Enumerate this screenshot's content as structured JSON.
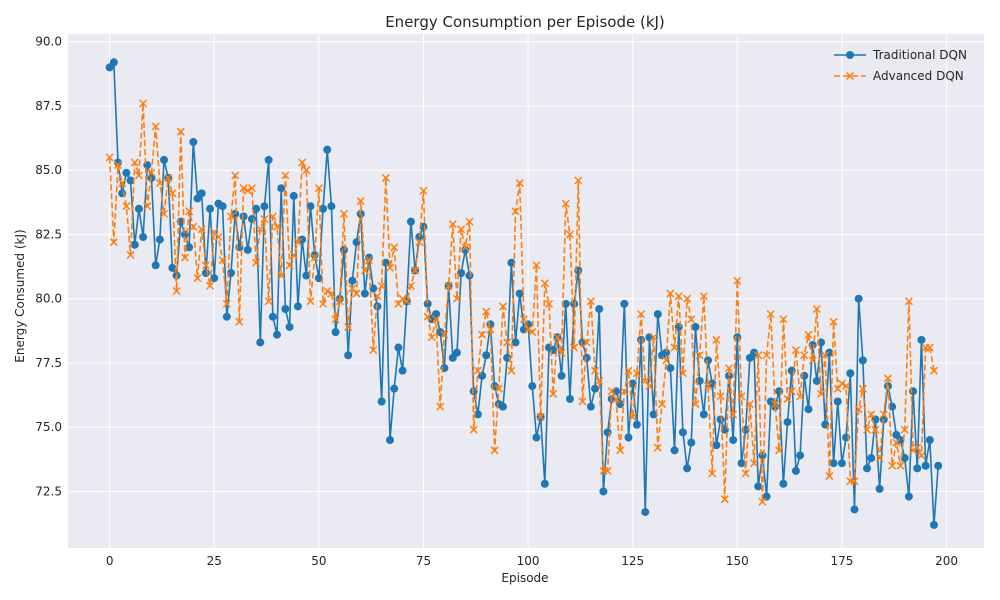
{
  "chart_data": {
    "type": "line",
    "title": "Energy Consumption per Episode (kJ)",
    "xlabel": "Episode",
    "ylabel": "Energy Consumed (kJ)",
    "xlim": [
      -9.95,
      208.95
    ],
    "ylim": [
      70.3,
      90.3
    ],
    "xticks": [
      0,
      25,
      50,
      75,
      100,
      125,
      150,
      175,
      200
    ],
    "yticks": [
      72.5,
      75.0,
      77.5,
      80.0,
      82.5,
      85.0,
      87.5,
      90.0
    ],
    "grid": true,
    "legend_position": "top-right",
    "series": [
      {
        "name": "Traditional DQN",
        "color": "#1f77b4",
        "marker": "circle",
        "linestyle": "solid",
        "values": [
          89.0,
          89.2,
          85.3,
          84.1,
          84.9,
          84.6,
          82.1,
          83.5,
          82.4,
          85.2,
          84.7,
          81.3,
          82.3,
          85.4,
          84.7,
          81.2,
          80.9,
          83.0,
          82.5,
          82.0,
          86.1,
          83.9,
          84.1,
          81.0,
          83.5,
          80.8,
          83.7,
          83.6,
          79.3,
          81.0,
          83.3,
          82.0,
          83.2,
          81.9,
          83.1,
          83.5,
          78.3,
          83.6,
          85.4,
          79.3,
          78.6,
          84.3,
          79.6,
          78.9,
          84.0,
          79.7,
          82.3,
          80.9,
          83.6,
          81.7,
          80.8,
          83.5,
          85.8,
          83.6,
          78.7,
          80.0,
          81.9,
          77.8,
          80.7,
          82.2,
          83.3,
          80.2,
          81.6,
          80.4,
          79.7,
          76.0,
          81.4,
          74.5,
          76.5,
          78.1,
          77.2,
          79.9,
          83.0,
          81.1,
          82.4,
          82.8,
          79.8,
          79.2,
          79.4,
          78.7,
          77.3,
          80.5,
          77.7,
          77.9,
          81.0,
          81.9,
          80.9,
          76.4,
          75.5,
          77.0,
          77.8,
          79.0,
          76.6,
          75.9,
          75.8,
          77.7,
          81.4,
          78.3,
          80.2,
          78.8,
          79.0,
          76.6,
          74.6,
          75.4,
          72.8,
          78.1,
          78.0,
          78.5,
          77.0,
          79.8,
          76.1,
          79.8,
          81.1,
          78.3,
          77.7,
          75.8,
          76.5,
          79.6,
          72.5,
          74.8,
          76.1,
          76.4,
          75.9,
          79.8,
          74.6,
          76.7,
          75.1,
          78.4,
          71.7,
          78.5,
          75.5,
          79.4,
          77.8,
          77.9,
          77.3,
          74.1,
          78.9,
          74.8,
          73.4,
          74.4,
          78.9,
          76.8,
          75.5,
          77.6,
          76.7,
          74.3,
          75.3,
          74.9,
          77.0,
          74.5,
          78.5,
          73.6,
          74.9,
          77.7,
          77.9,
          72.7,
          73.9,
          72.3,
          76.0,
          75.8,
          76.4,
          72.8,
          75.2,
          77.2,
          73.3,
          73.9,
          77.0,
          75.7,
          78.2,
          76.8,
          78.3,
          75.1,
          77.9,
          73.6,
          76.0,
          73.6,
          74.6,
          77.1,
          71.8,
          80.0,
          77.6,
          73.4,
          73.8,
          75.3,
          72.6,
          75.3,
          76.6,
          75.8,
          74.7,
          74.5,
          73.8,
          72.3,
          76.4,
          73.4,
          78.4,
          73.5,
          74.5,
          71.2,
          73.5
        ]
      },
      {
        "name": "Advanced DQN",
        "color": "#ff7f0e",
        "marker": "x",
        "linestyle": "dashed",
        "values": [
          85.5,
          82.2,
          85.2,
          84.5,
          83.6,
          81.7,
          85.3,
          84.8,
          87.6,
          83.6,
          84.9,
          86.7,
          84.5,
          83.3,
          84.7,
          84.1,
          80.3,
          86.5,
          81.6,
          83.4,
          82.8,
          80.8,
          82.7,
          81.3,
          80.5,
          82.6,
          82.4,
          81.5,
          79.8,
          83.2,
          84.8,
          79.1,
          84.3,
          84.2,
          84.3,
          81.4,
          82.7,
          83.1,
          79.9,
          83.2,
          82.8,
          80.9,
          84.8,
          81.3,
          81.7,
          82.2,
          85.3,
          85.0,
          79.9,
          81.6,
          84.3,
          79.8,
          80.3,
          80.2,
          79.2,
          79.9,
          83.3,
          78.9,
          80.4,
          80.2,
          83.8,
          81.1,
          81.5,
          78.0,
          80.1,
          80.5,
          84.7,
          81.2,
          82.0,
          79.8,
          80.0,
          79.9,
          80.5,
          81.1,
          82.2,
          84.2,
          79.3,
          78.5,
          79.2,
          75.8,
          78.6,
          80.5,
          82.9,
          80.0,
          82.7,
          82.0,
          83.0,
          74.9,
          77.2,
          78.6,
          79.5,
          78.8,
          74.1,
          76.5,
          79.7,
          78.3,
          77.2,
          83.4,
          84.5,
          79.2,
          78.8,
          78.7,
          81.3,
          75.4,
          80.6,
          79.8,
          76.3,
          78.5,
          77.9,
          83.7,
          82.5,
          78.1,
          84.6,
          76.0,
          78.3,
          79.9,
          77.2,
          76.8,
          73.3,
          73.3,
          76.4,
          76.1,
          74.1,
          76.4,
          77.2,
          75.4,
          77.1,
          79.4,
          76.8,
          76.6,
          78.5,
          74.2,
          75.9,
          77.6,
          80.2,
          78.1,
          80.1,
          77.1,
          80.0,
          79.2,
          75.9,
          77.8,
          80.1,
          76.6,
          73.2,
          78.4,
          76.2,
          72.2,
          77.3,
          75.5,
          80.7,
          76.2,
          73.2,
          75.9,
          73.6,
          77.8,
          72.1,
          77.8,
          79.4,
          75.9,
          74.1,
          79.2,
          76.1,
          76.4,
          78.0,
          76.2,
          77.8,
          78.6,
          77.6,
          79.6,
          76.3,
          77.8,
          73.1,
          79.1,
          76.5,
          76.7,
          76.6,
          72.9,
          72.9,
          75.7,
          76.5,
          74.9,
          75.5,
          74.9,
          73.8,
          75.5,
          76.9,
          73.5,
          74.4,
          73.5,
          74.9,
          79.9,
          74.1,
          74.2,
          73.9,
          78.1,
          78.1,
          77.2
        ]
      }
    ]
  }
}
